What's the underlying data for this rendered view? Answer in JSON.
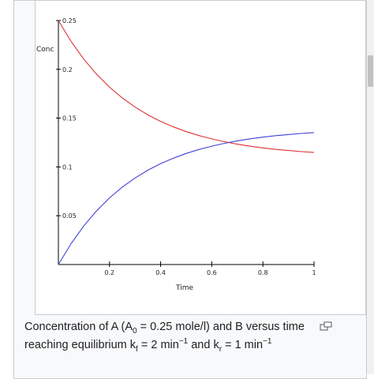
{
  "chart_data": {
    "type": "line",
    "ylabel": "Conc",
    "xlabel": "Time",
    "xlim": [
      0,
      1
    ],
    "ylim": [
      0,
      0.25
    ],
    "x_ticks": [
      "0.2",
      "0.4",
      "0.6",
      "0.8",
      "1"
    ],
    "y_ticks": [
      "0.05",
      "0.1",
      "0.15",
      "0.2",
      "0.25"
    ],
    "grid": false,
    "series": [
      {
        "color": "#e03030",
        "x": [
          0,
          0.05,
          0.1,
          0.15,
          0.2,
          0.25,
          0.3,
          0.35,
          0.4,
          0.45,
          0.5,
          0.55,
          0.6,
          0.65,
          0.7,
          0.75,
          0.8,
          0.85,
          0.9,
          0.95,
          1
        ],
        "values": [
          0.25,
          0.2285,
          0.2102,
          0.1948,
          0.1817,
          0.1706,
          0.1613,
          0.1533,
          0.1466,
          0.141,
          0.1362,
          0.1321,
          0.1287,
          0.1258,
          0.1233,
          0.1212,
          0.1195,
          0.118,
          0.1168,
          0.1157,
          0.1148
        ]
      },
      {
        "color": "#4040d8",
        "x": [
          0,
          0.05,
          0.1,
          0.15,
          0.2,
          0.25,
          0.3,
          0.35,
          0.4,
          0.45,
          0.5,
          0.55,
          0.6,
          0.65,
          0.7,
          0.75,
          0.8,
          0.85,
          0.9,
          0.95,
          1
        ],
        "values": [
          0,
          0.0215,
          0.0398,
          0.0552,
          0.0683,
          0.0794,
          0.0887,
          0.0967,
          0.1034,
          0.109,
          0.1138,
          0.1179,
          0.1213,
          0.1242,
          0.1267,
          0.1288,
          0.1305,
          0.132,
          0.1332,
          0.1343,
          0.1352
        ]
      }
    ]
  },
  "caption": {
    "part1": "Concentration of A (A",
    "sub_0": "0",
    "part2": " = 0.25 mole/l) and B versus time reaching equilibrium k",
    "sub_f": "f",
    "part3": " = 2 min",
    "sup_1": "−1",
    "part4": " and k",
    "sub_r": "r",
    "part5": " = 1 min",
    "sup_2": "−1"
  },
  "enlarge_icon": "enlarge-icon"
}
